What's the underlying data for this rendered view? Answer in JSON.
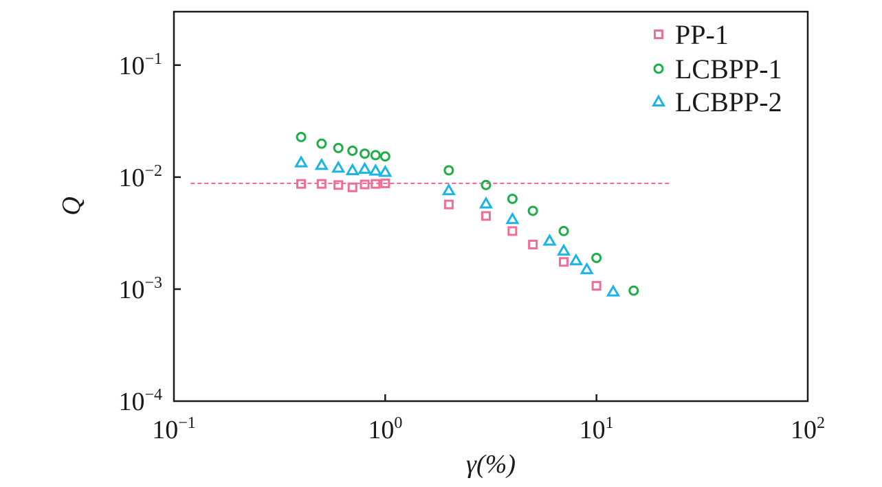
{
  "chart_data": {
    "type": "scatter",
    "x_scale": "log",
    "y_scale": "log",
    "xlabel": "γ(%)",
    "ylabel": "Q",
    "xlim": [
      0.1,
      100
    ],
    "ylim": [
      0.0001,
      0.3
    ],
    "x_ticks": [
      {
        "base": "10",
        "exp": "−1"
      },
      {
        "base": "10",
        "exp": "0"
      },
      {
        "base": "10",
        "exp": "1"
      },
      {
        "base": "10",
        "exp": "2"
      }
    ],
    "y_ticks": [
      {
        "base": "10",
        "exp": "−4"
      },
      {
        "base": "10",
        "exp": "−3"
      },
      {
        "base": "10",
        "exp": "−2"
      },
      {
        "base": "10",
        "exp": "−1"
      }
    ],
    "legend_position": "top-right",
    "series": [
      {
        "name": "PP-1",
        "marker": "square",
        "color": "#f06e96",
        "x": [
          0.4,
          0.5,
          0.6,
          0.7,
          0.8,
          0.9,
          1.0,
          2,
          3,
          4,
          5,
          7,
          10
        ],
        "y": [
          0.0087,
          0.0087,
          0.0085,
          0.0081,
          0.0086,
          0.0087,
          0.0088,
          0.0057,
          0.0045,
          0.0033,
          0.0025,
          0.00175,
          0.00107
        ]
      },
      {
        "name": "LCBPP-1",
        "marker": "circle",
        "color": "#1fae4a",
        "x": [
          0.4,
          0.5,
          0.6,
          0.7,
          0.8,
          0.9,
          1.0,
          2,
          3,
          4,
          5,
          7,
          10,
          15
        ],
        "y": [
          0.0228,
          0.0199,
          0.0182,
          0.0172,
          0.0162,
          0.0157,
          0.0153,
          0.0115,
          0.0085,
          0.0064,
          0.005,
          0.0033,
          0.0019,
          0.00097
        ]
      },
      {
        "name": "LCBPP-2",
        "marker": "triangle",
        "color": "#1ab4e6",
        "x": [
          0.4,
          0.5,
          0.6,
          0.7,
          0.8,
          0.9,
          1.0,
          2,
          3,
          4,
          6,
          7,
          8,
          9,
          12
        ],
        "y": [
          0.0135,
          0.0128,
          0.0121,
          0.0115,
          0.0118,
          0.0114,
          0.0111,
          0.0076,
          0.0058,
          0.0042,
          0.0027,
          0.0022,
          0.0018,
          0.0015,
          0.00095
        ]
      }
    ],
    "reference_line": {
      "y": 0.0088,
      "x_range": [
        0.12,
        22
      ],
      "color": "#f06e96",
      "style": "dashed"
    }
  }
}
